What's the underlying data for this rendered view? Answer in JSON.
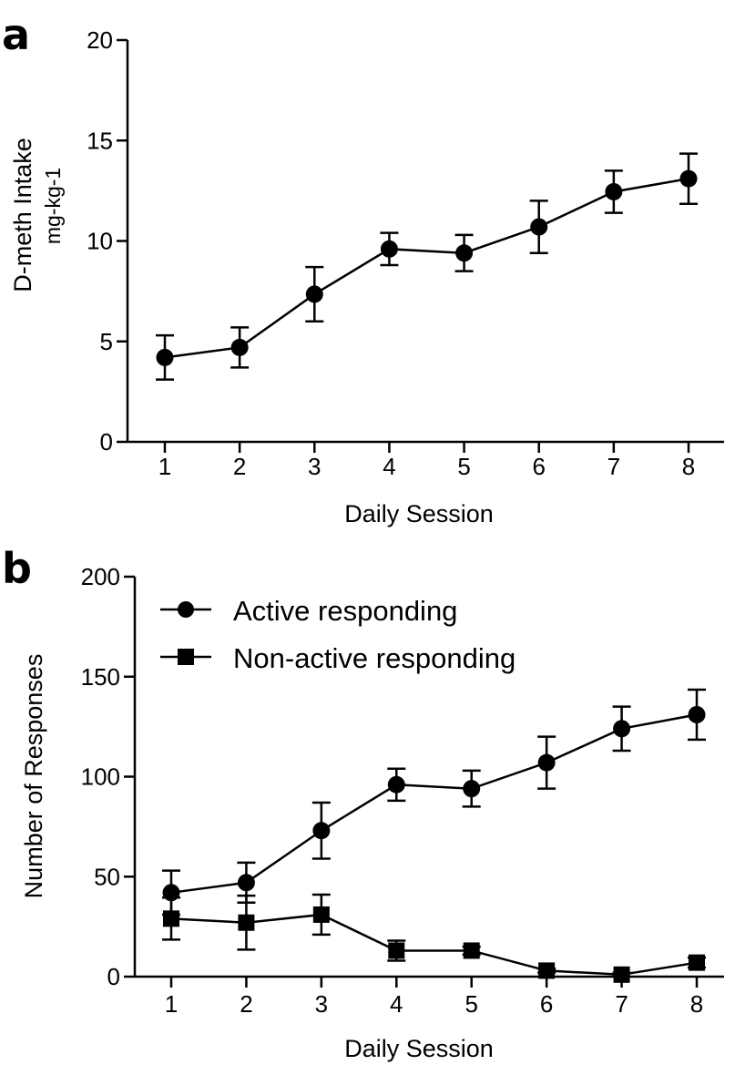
{
  "chart_data": [
    {
      "panel": "a",
      "type": "line",
      "xlabel": "Daily Session",
      "ylabel": "D-meth Intake",
      "ylabel_units": "mg-kg-1",
      "x": [
        1,
        2,
        3,
        4,
        5,
        6,
        7,
        8
      ],
      "ylim": [
        0,
        20
      ],
      "yticks": [
        0,
        5,
        10,
        15,
        20
      ],
      "series": [
        {
          "marker": "circle",
          "values": [
            4.2,
            4.7,
            7.35,
            9.6,
            9.4,
            10.7,
            12.45,
            13.1
          ],
          "errors": [
            1.1,
            1.0,
            1.35,
            0.8,
            0.9,
            1.3,
            1.05,
            1.25
          ]
        }
      ]
    },
    {
      "panel": "b",
      "type": "line",
      "xlabel": "Daily Session",
      "ylabel": "Number of Responses",
      "x": [
        1,
        2,
        3,
        4,
        5,
        6,
        7,
        8
      ],
      "ylim": [
        0,
        200
      ],
      "yticks": [
        0,
        50,
        100,
        150,
        200
      ],
      "legend_position": "top-left",
      "series": [
        {
          "name": "Active responding",
          "marker": "circle",
          "values": [
            42,
            47,
            73,
            96,
            94,
            107,
            124,
            131
          ],
          "errors": [
            11,
            10,
            14,
            8,
            9,
            13,
            11,
            12.5
          ]
        },
        {
          "name": "Non-active responding",
          "marker": "square",
          "values": [
            29,
            27,
            31,
            13,
            13,
            3,
            1,
            7
          ],
          "errors": [
            10.5,
            13.5,
            10,
            5,
            2,
            1,
            1,
            2.5
          ]
        }
      ]
    }
  ]
}
